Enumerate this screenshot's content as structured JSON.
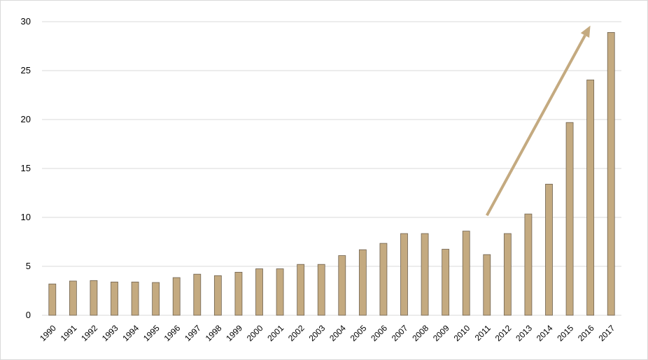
{
  "chart_data": {
    "type": "bar",
    "title": "",
    "xlabel": "",
    "ylabel": "",
    "categories": [
      "1990",
      "1991",
      "1992",
      "1993",
      "1994",
      "1995",
      "1996",
      "1997",
      "1998",
      "1999",
      "2000",
      "2001",
      "2002",
      "2003",
      "2004",
      "2005",
      "2006",
      "2007",
      "2008",
      "2009",
      "2010",
      "2011",
      "2012",
      "2013",
      "2014",
      "2015",
      "2016",
      "2017"
    ],
    "values": [
      3.2,
      3.5,
      3.55,
      3.4,
      3.4,
      3.35,
      3.85,
      4.2,
      4.05,
      4.4,
      4.75,
      4.75,
      5.2,
      5.2,
      6.1,
      6.7,
      7.35,
      8.35,
      8.35,
      6.75,
      8.6,
      6.2,
      8.35,
      10.35,
      13.4,
      19.7,
      24.05,
      28.9
    ],
    "ylim": [
      0,
      30
    ],
    "yticks": [
      0,
      5,
      10,
      15,
      20,
      25,
      30
    ],
    "grid": true,
    "legend": "none",
    "annotations": [
      {
        "type": "arrow",
        "from": {
          "x": "2011",
          "y": 10.2
        },
        "to": {
          "x": "2016",
          "y": 29.6
        }
      }
    ],
    "colors": {
      "bar_fill": "#c4aa80",
      "bar_stroke": "#6f6250",
      "arrow": "#c4aa80",
      "grid": "#d9d9d9"
    }
  }
}
